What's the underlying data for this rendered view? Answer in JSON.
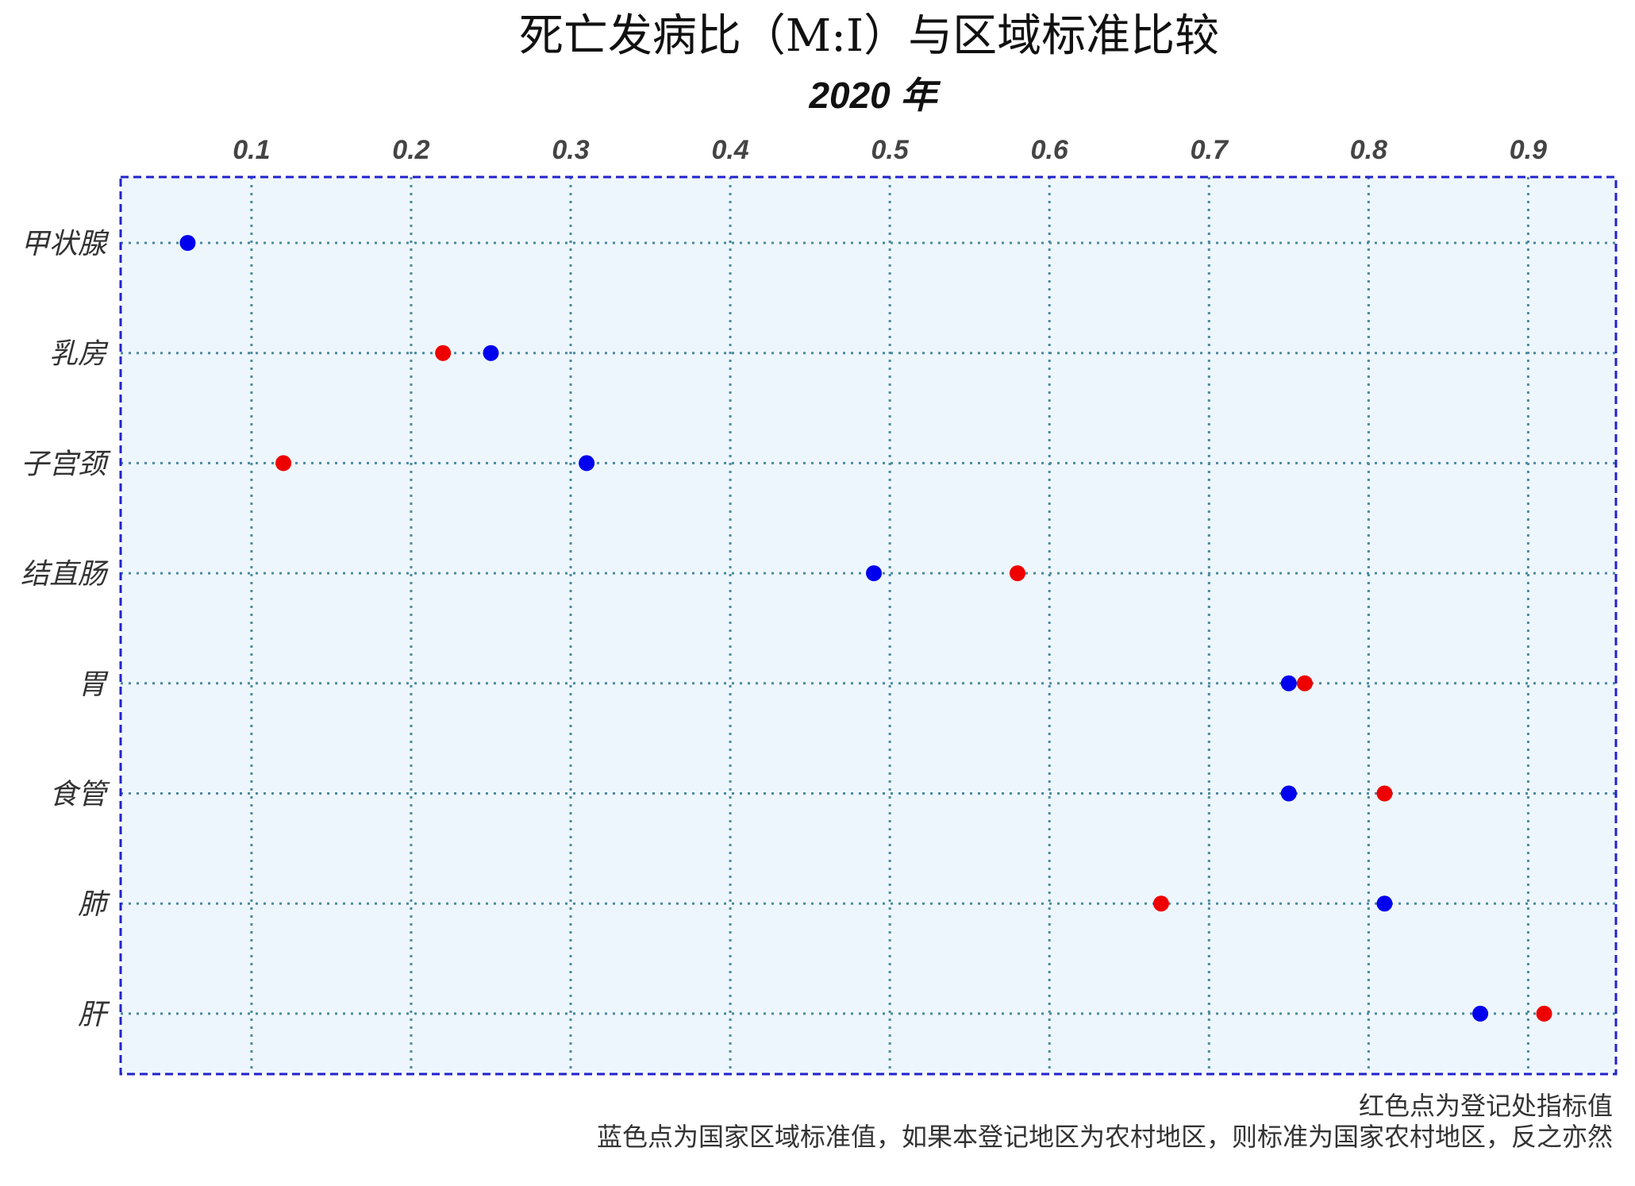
{
  "chart_data": {
    "type": "scatter",
    "title": "死亡发病比（M:I）与区域标准比较",
    "subtitle": "2020 年",
    "categories": [
      "甲状腺",
      "乳房",
      "子宫颈",
      "结直肠",
      "胃",
      "食管",
      "肺",
      "肝"
    ],
    "x_ticks": [
      0.1,
      0.2,
      0.3,
      0.4,
      0.5,
      0.6,
      0.7,
      0.8,
      0.9
    ],
    "xlim": [
      0.018,
      0.955
    ],
    "x_axis_position": "top",
    "grid": true,
    "series": [
      {
        "color": "#0000ee",
        "values": [
          0.06,
          0.25,
          0.31,
          0.49,
          0.75,
          0.75,
          0.81,
          0.87
        ]
      },
      {
        "color": "#ee0000",
        "values": [
          null,
          0.22,
          0.12,
          0.58,
          0.76,
          0.81,
          0.67,
          0.91
        ]
      }
    ],
    "notes": [
      "红色点为登记处指标值",
      "蓝色点为国家区域标准值，如果本登记地区为农村地区，则标准为国家农村地区，反之亦然"
    ]
  },
  "colors": {
    "plot_background": "#eef6fd",
    "border": "#2222cc",
    "grid": "#4a8aa0"
  }
}
